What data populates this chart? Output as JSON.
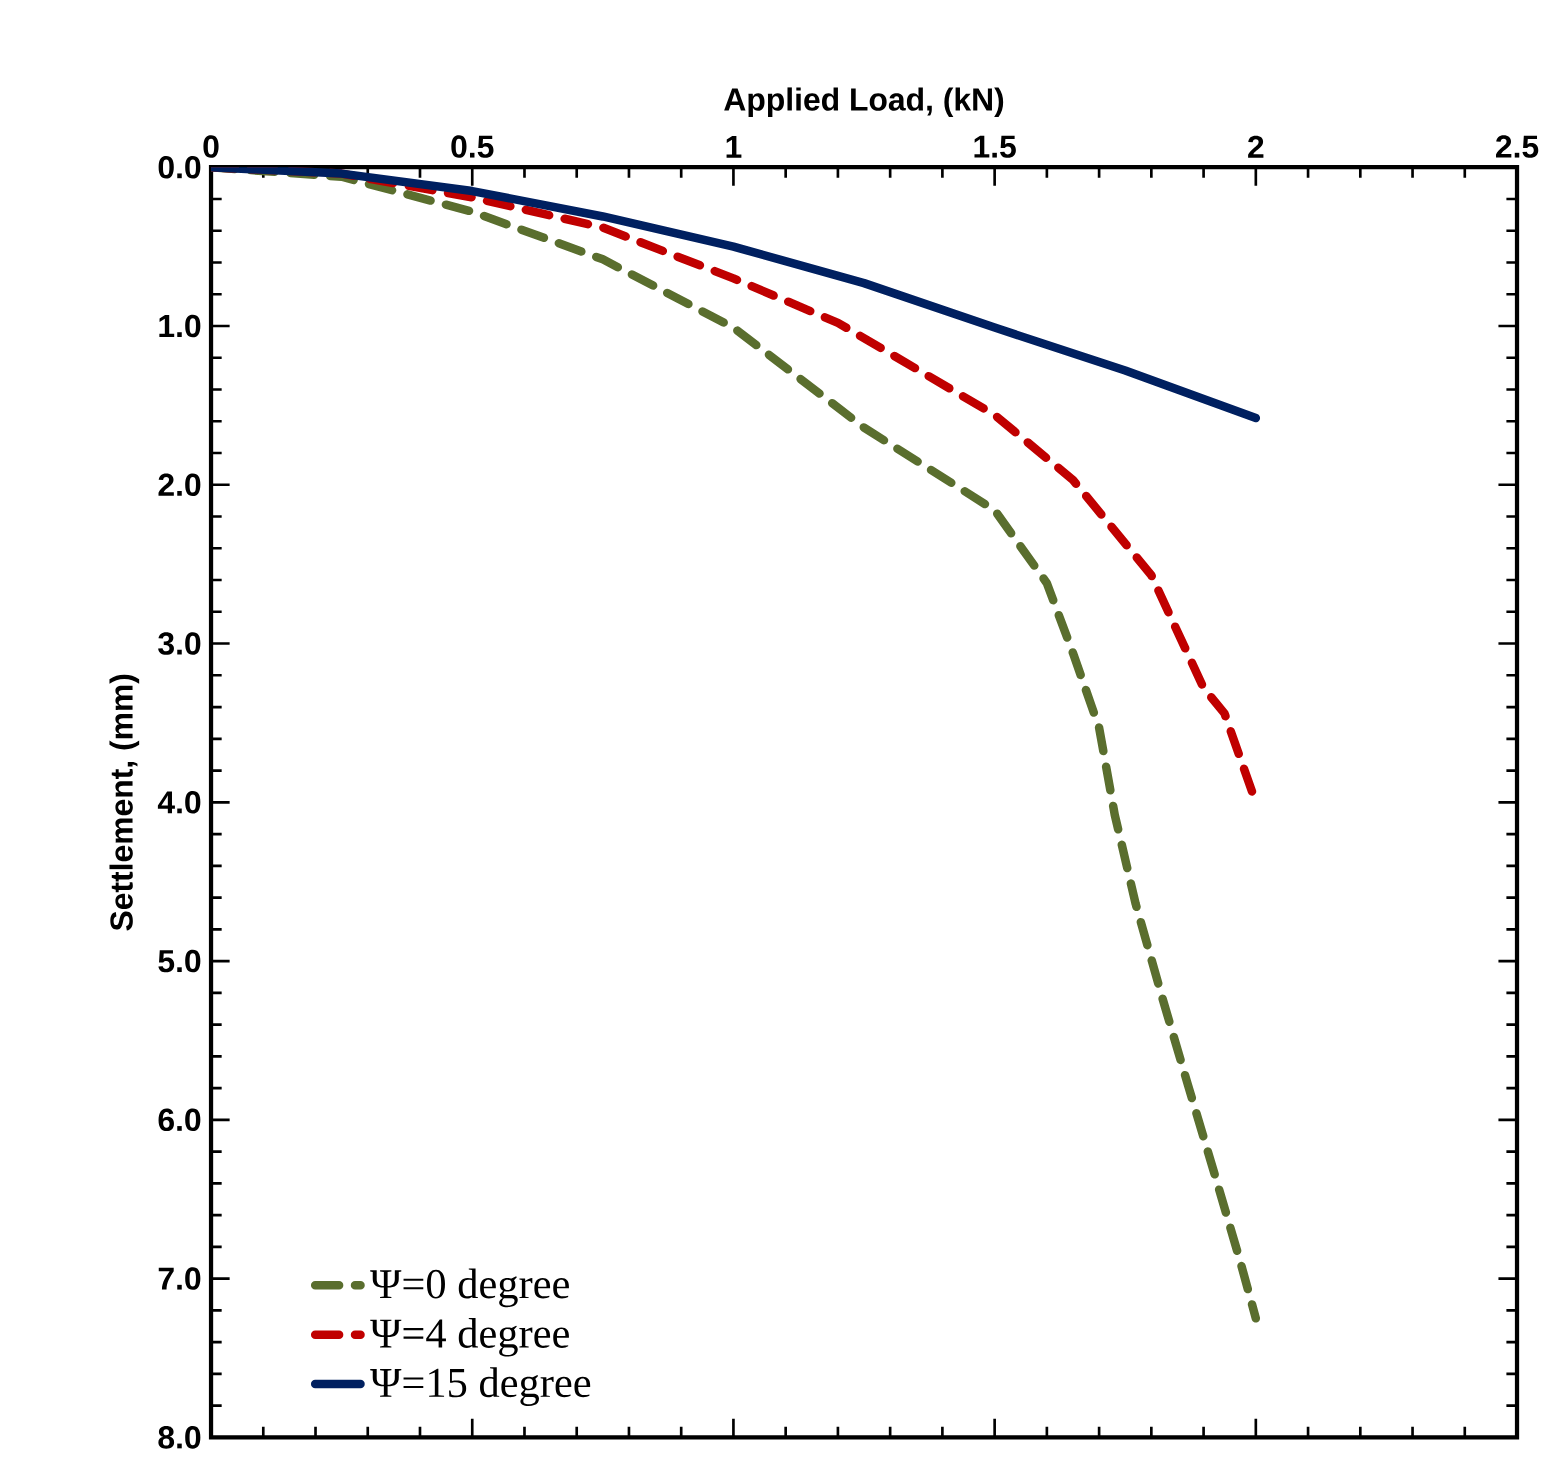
{
  "chart_data": {
    "type": "line",
    "xlabel": "Applied Load, (kN)",
    "ylabel": "Settlement, (mm)",
    "xlim": [
      0,
      2.5
    ],
    "xticks": [
      0,
      0.5,
      1,
      1.5,
      2,
      2.5
    ],
    "ylim": [
      8,
      0
    ],
    "yticks": [
      {
        "value": 0,
        "label": "0.0"
      },
      {
        "value": 1,
        "label": "1.0"
      },
      {
        "value": 2,
        "label": "2.0"
      },
      {
        "value": 3,
        "label": "3.0"
      },
      {
        "value": 4,
        "label": "4.0"
      },
      {
        "value": 5,
        "label": "5.0"
      },
      {
        "value": 6,
        "label": "6.0"
      },
      {
        "value": 7,
        "label": "7.0"
      },
      {
        "value": 8,
        "label": "8.0"
      }
    ],
    "grid": false,
    "legend": "bottom left",
    "marker": "none",
    "series": [
      {
        "name": "Ψ=0 degree",
        "color": "#5a6e2e",
        "line_style": "dashed",
        "x": [
          0,
          0.25,
          0.5,
          0.75,
          1,
          1.25,
          1.5,
          1.6,
          1.65,
          1.7,
          1.73,
          1.77,
          1.82,
          1.87,
          1.92,
          1.97,
          2
        ],
        "values": [
          0,
          0.06,
          0.28,
          0.58,
          1.01,
          1.64,
          2.16,
          2.62,
          3.06,
          3.53,
          4.08,
          4.64,
          5.22,
          5.78,
          6.33,
          6.89,
          7.25
        ]
      },
      {
        "name": "Ψ=4 degree",
        "color": "#c00000",
        "line_style": "dashed",
        "x": [
          0,
          0.25,
          0.5,
          0.75,
          1,
          1.2,
          1.5,
          1.65,
          1.8,
          1.9,
          1.94,
          2
        ],
        "values": [
          0,
          0.04,
          0.19,
          0.38,
          0.7,
          0.98,
          1.56,
          1.97,
          2.57,
          3.28,
          3.44,
          4.0
        ]
      },
      {
        "name": "Ψ=15 degree",
        "color": "#002060",
        "line_style": "solid",
        "x": [
          0,
          0.25,
          0.5,
          0.75,
          1,
          1.25,
          1.5,
          1.75,
          2
        ],
        "values": [
          0,
          0.04,
          0.15,
          0.31,
          0.5,
          0.73,
          1.01,
          1.28,
          1.58
        ]
      }
    ]
  }
}
